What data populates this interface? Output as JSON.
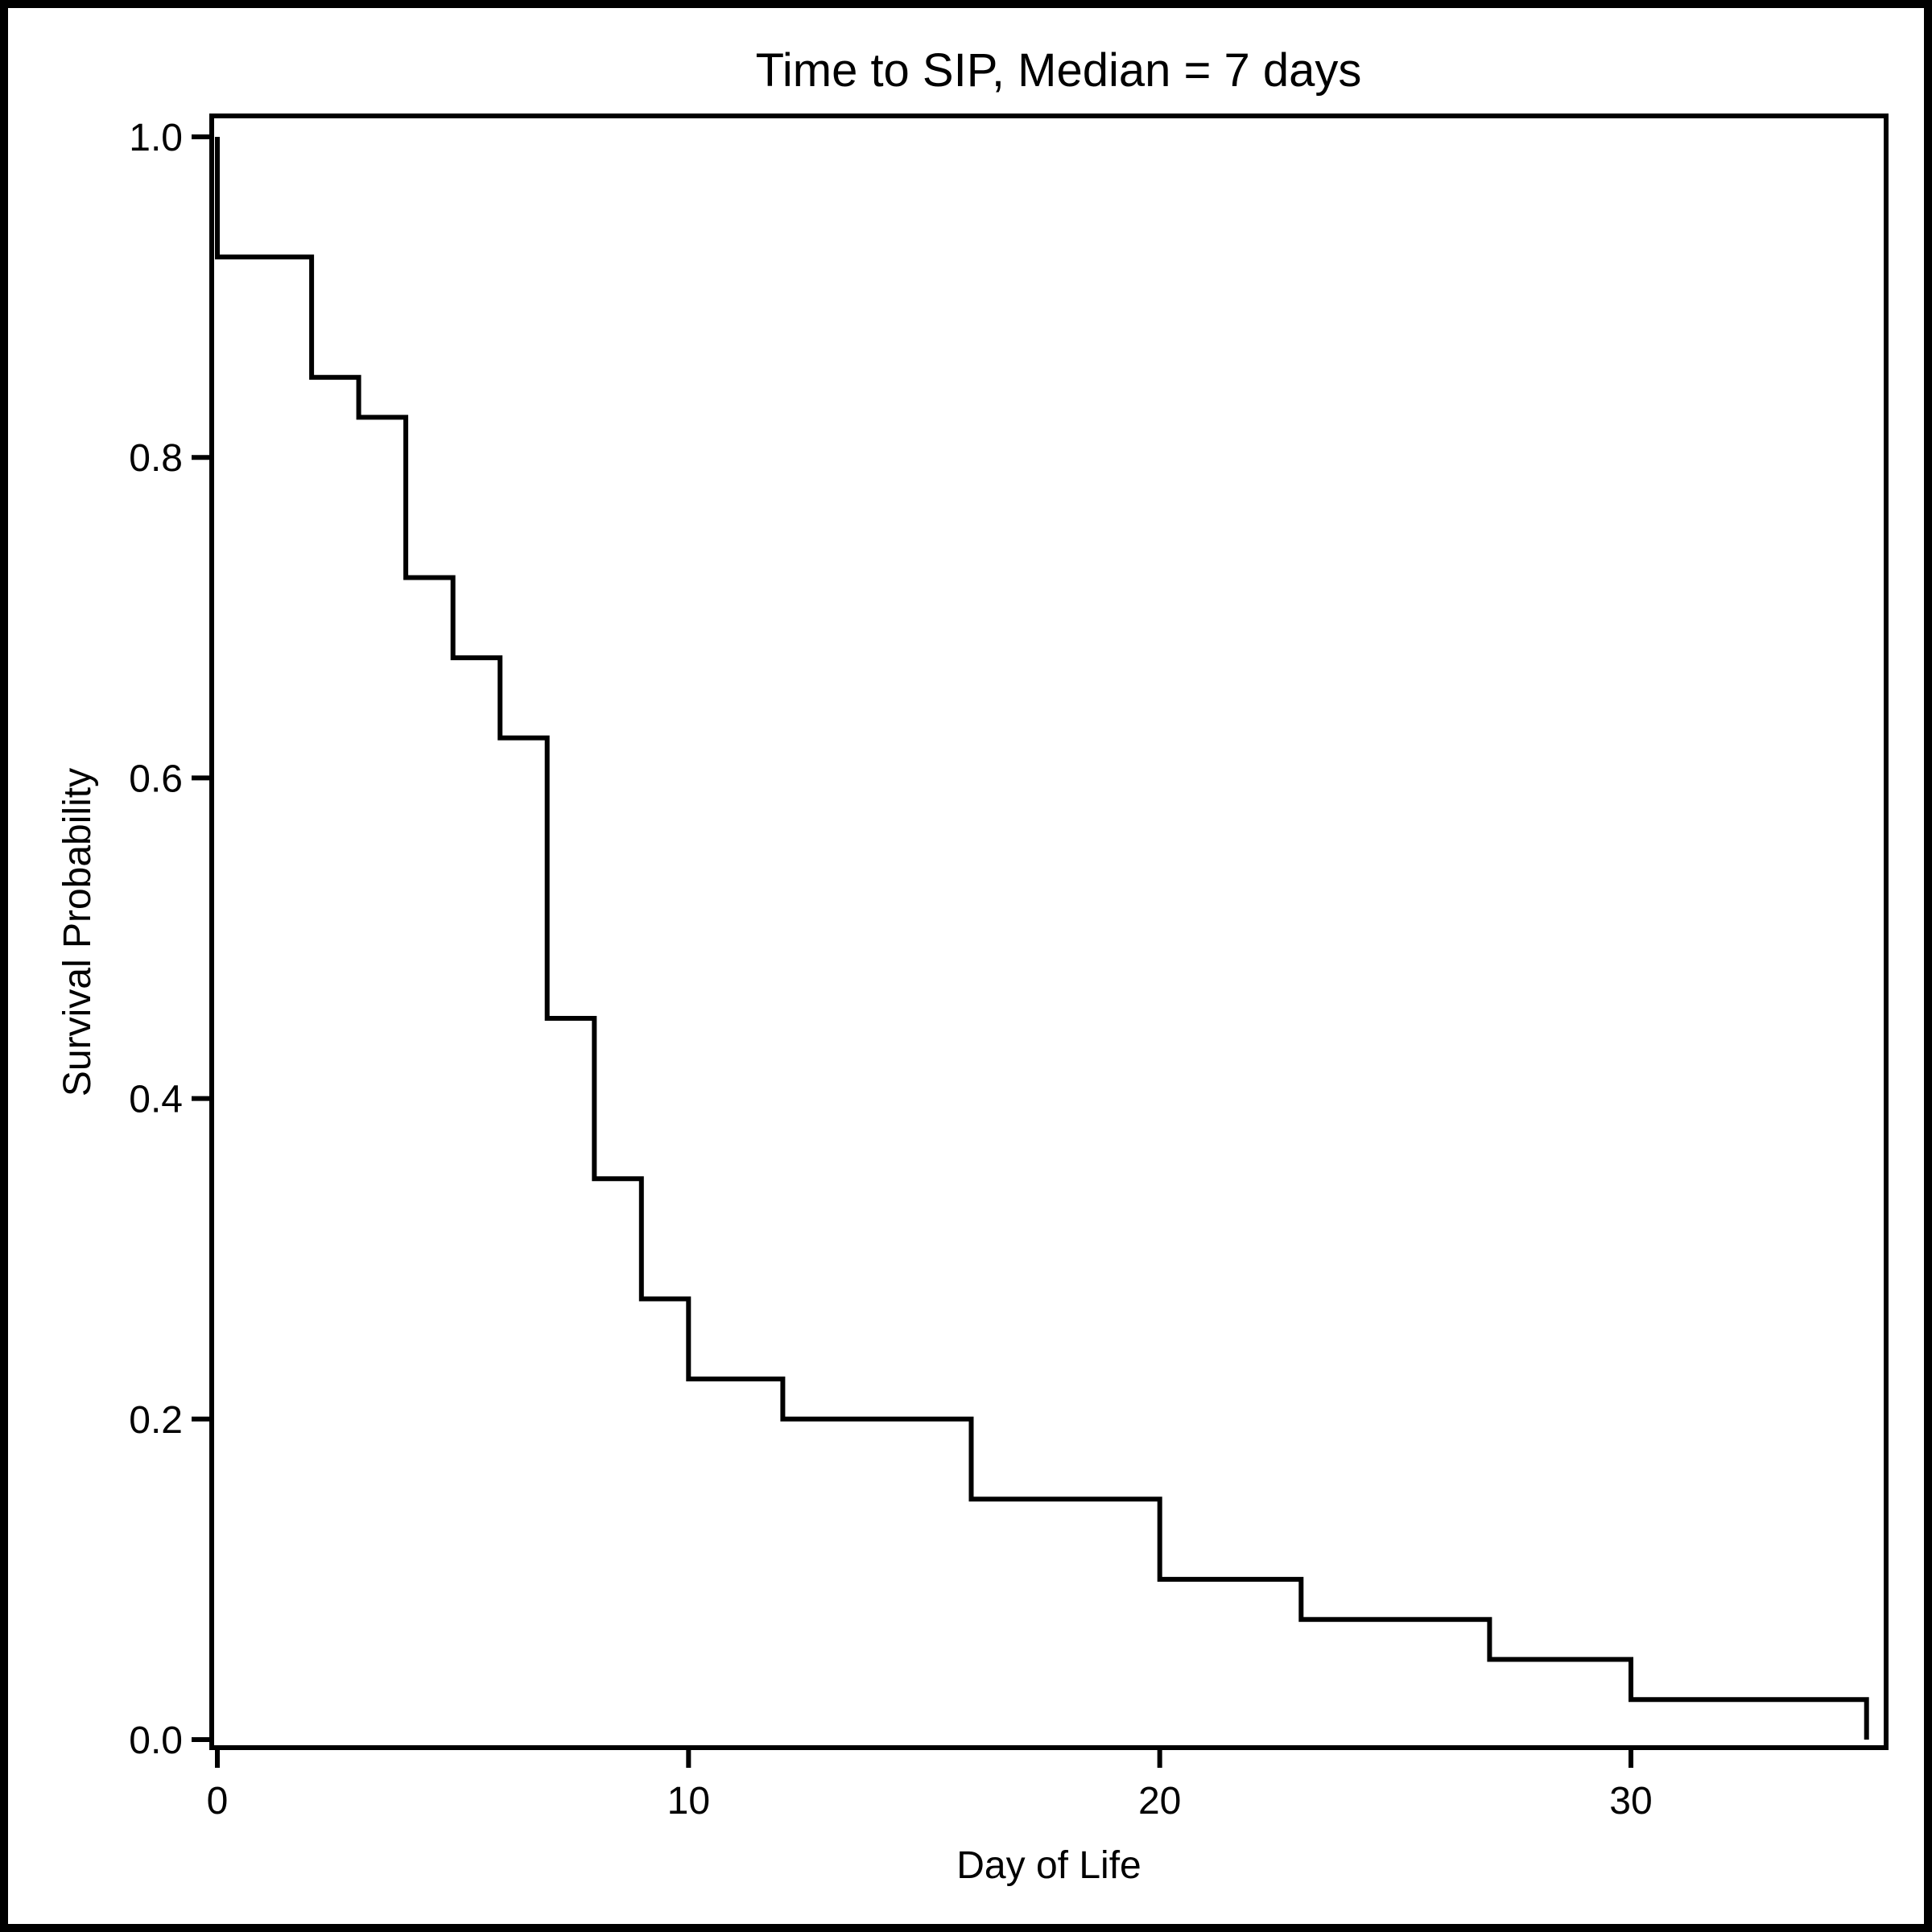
{
  "title": "Time to SIP, Median = 7 days",
  "colors": {
    "curve": "#000000",
    "frame": "#000000",
    "ticks": "#000000",
    "text": "#000000",
    "background": "#ffffff"
  },
  "chart_data": {
    "type": "line",
    "variant": "kaplan-meier-step-function",
    "title": "Time to SIP, Median = 7 days",
    "xlabel": "Day of Life",
    "ylabel": "Survival Probability",
    "median_days": 7,
    "xlim": [
      0,
      35.4
    ],
    "ylim": [
      0.0,
      1.0
    ],
    "grid": false,
    "legend": false,
    "x_ticks": [
      {
        "value": 0,
        "label": "0"
      },
      {
        "value": 10,
        "label": "10"
      },
      {
        "value": 20,
        "label": "20"
      },
      {
        "value": 30,
        "label": "30"
      }
    ],
    "y_ticks": [
      {
        "value": 1.0,
        "label": "1.0"
      },
      {
        "value": 0.8,
        "label": "0.8"
      },
      {
        "value": 0.6,
        "label": "0.6"
      },
      {
        "value": 0.4,
        "label": "0.4"
      },
      {
        "value": 0.2,
        "label": "0.2"
      },
      {
        "value": 0.0,
        "label": "0.0"
      }
    ],
    "series": [
      {
        "name": "Survival Probability",
        "step": "post",
        "start": {
          "day": 0,
          "survival": 1.0
        },
        "event_days": [
          0,
          2,
          3,
          4,
          5,
          6,
          7,
          8,
          9,
          10,
          12,
          16,
          20,
          23,
          27,
          30,
          35
        ],
        "survival_after": [
          0.925,
          0.85,
          0.825,
          0.725,
          0.675,
          0.625,
          0.45,
          0.35,
          0.275,
          0.225,
          0.2,
          0.15,
          0.1,
          0.075,
          0.05,
          0.025,
          0.0
        ]
      }
    ]
  }
}
